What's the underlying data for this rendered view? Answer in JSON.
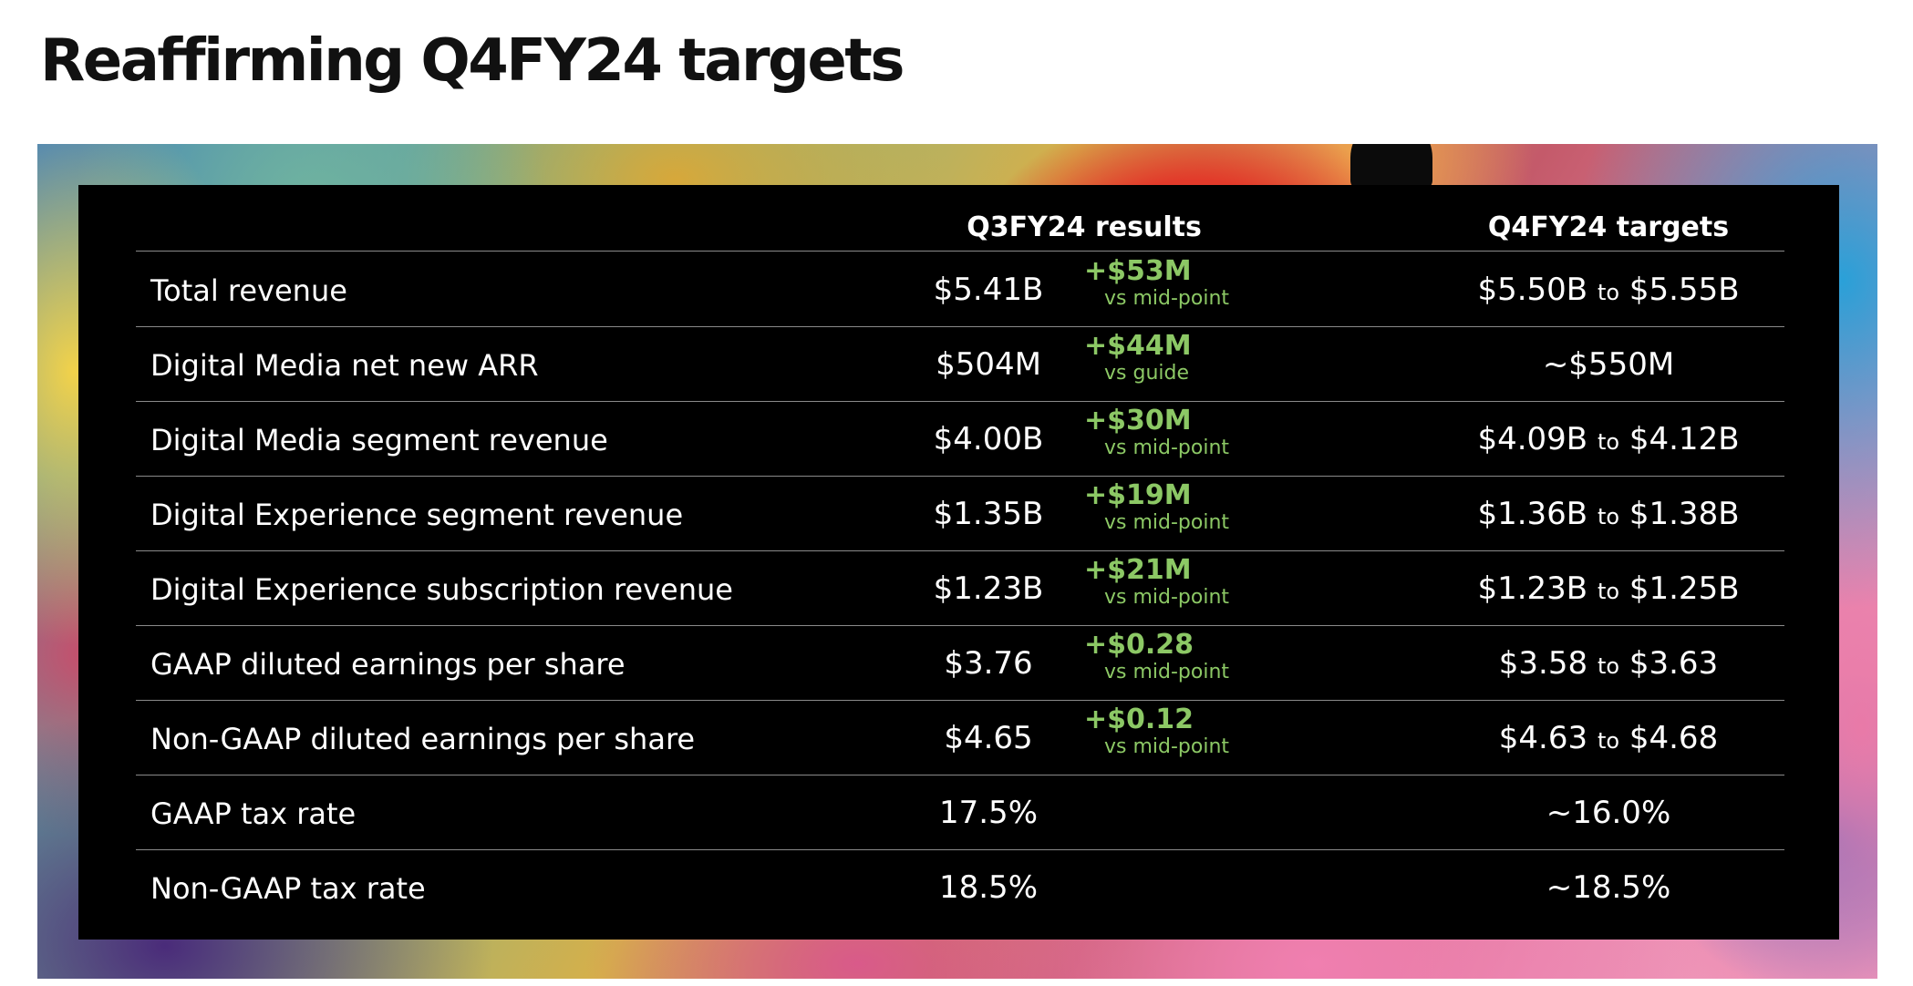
{
  "title": "Reaffirming Q4FY24 targets",
  "columns": {
    "q3": "Q3FY24 results",
    "q4": "Q4FY24 targets"
  },
  "range_word": "to",
  "rows": [
    {
      "metric": "Total revenue",
      "q3": "$5.41B",
      "beat": "+$53M",
      "beat_note": "vs mid-point",
      "target_low": "$5.50B",
      "target_high": "$5.55B",
      "target_single": ""
    },
    {
      "metric": "Digital Media net new ARR",
      "q3": "$504M",
      "beat": "+$44M",
      "beat_note": "vs guide",
      "target_low": "",
      "target_high": "",
      "target_single": "~$550M"
    },
    {
      "metric": "Digital Media segment revenue",
      "q3": "$4.00B",
      "beat": "+$30M",
      "beat_note": "vs mid-point",
      "target_low": "$4.09B",
      "target_high": "$4.12B",
      "target_single": ""
    },
    {
      "metric": "Digital Experience segment revenue",
      "q3": "$1.35B",
      "beat": "+$19M",
      "beat_note": "vs mid-point",
      "target_low": "$1.36B",
      "target_high": "$1.38B",
      "target_single": ""
    },
    {
      "metric": "Digital Experience subscription revenue",
      "q3": "$1.23B",
      "beat": "+$21M",
      "beat_note": "vs mid-point",
      "target_low": "$1.23B",
      "target_high": "$1.25B",
      "target_single": ""
    },
    {
      "metric": "GAAP diluted earnings per share",
      "q3": "$3.76",
      "beat": "+$0.28",
      "beat_note": "vs mid-point",
      "target_low": "$3.58",
      "target_high": "$3.63",
      "target_single": ""
    },
    {
      "metric": "Non-GAAP diluted earnings per share",
      "q3": "$4.65",
      "beat": "+$0.12",
      "beat_note": "vs mid-point",
      "target_low": "$4.63",
      "target_high": "$4.68",
      "target_single": ""
    },
    {
      "metric": "GAAP tax rate",
      "q3": "17.5%",
      "beat": "",
      "beat_note": "",
      "target_low": "",
      "target_high": "",
      "target_single": "~16.0%"
    },
    {
      "metric": "Non-GAAP tax rate",
      "q3": "18.5%",
      "beat": "",
      "beat_note": "",
      "target_low": "",
      "target_high": "",
      "target_single": "~18.5%"
    }
  ],
  "colors": {
    "beat_green": "#8cc865",
    "panel_black": "#000000",
    "rule_gray": "#8a8a8a"
  }
}
